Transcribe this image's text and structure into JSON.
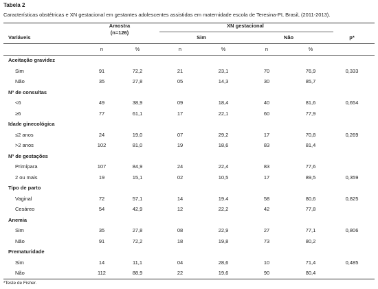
{
  "header": {
    "label": "Tabela 2",
    "caption": "Características obstétricas e XN gestacional em gestantes adolescentes assistidas em maternidade escola de Teresina-PI, Brasil, (2011-2013)."
  },
  "table": {
    "columns": {
      "variable": "Variáveis",
      "sample": "Amostra",
      "sample_n": "(n=126)",
      "xn": "XN gestacional",
      "yes": "Sim",
      "no": "Não",
      "p": "p*",
      "sub": [
        "n",
        "%",
        "n",
        "%",
        "n",
        "%"
      ]
    },
    "sections": [
      {
        "title": "Aceitação gravidez",
        "rows": [
          [
            "Sim",
            "91",
            "72,2",
            "21",
            "23,1",
            "70",
            "76,9",
            "0,333"
          ],
          [
            "Não",
            "35",
            "27,8",
            "05",
            "14,3",
            "30",
            "85,7"
          ]
        ]
      },
      {
        "title": "Nº de consultas",
        "rows": [
          [
            "<6",
            "49",
            "38,9",
            "09",
            "18,4",
            "40",
            "81,6",
            "0,654"
          ],
          [
            "≥6",
            "77",
            "61,1",
            "17",
            "22,1",
            "60",
            "77,9"
          ]
        ]
      },
      {
        "title": "Idade ginecológica",
        "rows": [
          [
            "≤2 anos",
            "24",
            "19,0",
            "07",
            "29,2",
            "17",
            "70,8",
            "0,269"
          ],
          [
            ">2 anos",
            "102",
            "81,0",
            "19",
            "18,6",
            "83",
            "81,4"
          ]
        ]
      },
      {
        "title": "Nº de gestações",
        "rows": [
          [
            "Primípara",
            "107",
            "84,9",
            "24",
            "22,4",
            "83",
            "77,6"
          ],
          [
            "2 ou mais",
            "19",
            "15,1",
            "02",
            "10,5",
            "17",
            "89,5",
            "0,359"
          ]
        ]
      },
      {
        "title": "Tipo de parto",
        "rows": [
          [
            "Vaginal",
            "72",
            "57,1",
            "14",
            "19.4",
            "58",
            "80,6",
            "0,825"
          ],
          [
            "Cesáreo",
            "54",
            "42,9",
            "12",
            "22,2",
            "42",
            "77,8"
          ]
        ]
      },
      {
        "title": "Anemia",
        "rows": [
          [
            "Sim",
            "35",
            "27,8",
            "08",
            "22,9",
            "27",
            "77,1",
            "0,806"
          ],
          [
            "Não",
            "91",
            "72,2",
            "18",
            "19,8",
            "73",
            "80,2"
          ]
        ]
      },
      {
        "title": "Prematuridade",
        "rows": [
          [
            "Sim",
            "14",
            "11,1",
            "04",
            "28,6",
            "10",
            "71,4",
            "0,485"
          ],
          [
            "Não",
            "112",
            "88,9",
            "22",
            "19,6",
            "90",
            "80,4"
          ]
        ]
      }
    ]
  },
  "footnote": "*Teste de Fisher."
}
